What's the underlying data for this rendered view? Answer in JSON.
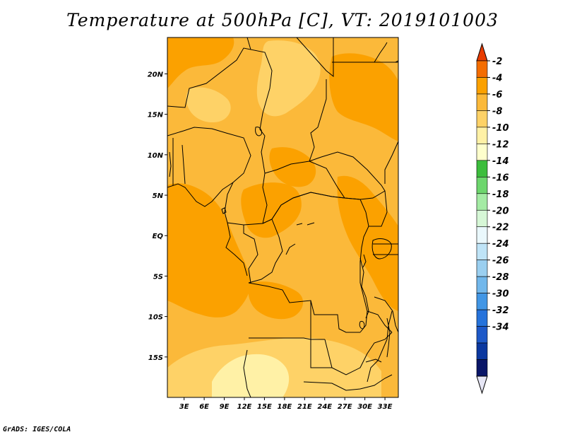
{
  "title": "Temperature at 500hPa [C], VT: 2019101003",
  "footer": "GrADS: IGES/COLA",
  "map": {
    "lat_labels": [
      {
        "lat": 20,
        "label": "20N"
      },
      {
        "lat": 15,
        "label": "15N"
      },
      {
        "lat": 10,
        "label": "10N"
      },
      {
        "lat": 5,
        "label": "5N"
      },
      {
        "lat": 0,
        "label": "EQ"
      },
      {
        "lat": -5,
        "label": "5S"
      },
      {
        "lat": -10,
        "label": "10S"
      },
      {
        "lat": -15,
        "label": "15S"
      }
    ],
    "lon_labels": [
      {
        "lon": 3,
        "label": "3E"
      },
      {
        "lon": 6,
        "label": "6E"
      },
      {
        "lon": 9,
        "label": "9E"
      },
      {
        "lon": 12,
        "label": "12E"
      },
      {
        "lon": 15,
        "label": "15E"
      },
      {
        "lon": 18,
        "label": "18E"
      },
      {
        "lon": 21,
        "label": "21E"
      },
      {
        "lon": 24,
        "label": "24E"
      },
      {
        "lon": 27,
        "label": "27E"
      },
      {
        "lon": 30,
        "label": "30E"
      },
      {
        "lon": 33,
        "label": "33E"
      }
    ],
    "lon_range": [
      0.5,
      35
    ],
    "lat_range": [
      -20,
      24.5
    ]
  },
  "colorbar": {
    "labels": [
      "-2",
      "-4",
      "-6",
      "-8",
      "-10",
      "-12",
      "-14",
      "-16",
      "-18",
      "-20",
      "-22",
      "-24",
      "-26",
      "-28",
      "-30",
      "-32",
      "-34"
    ],
    "colors": [
      "#e83c00",
      "#f46d00",
      "#fba100",
      "#fbb93a",
      "#fed267",
      "#fff1a6",
      "#feffcc",
      "#3cbd3c",
      "#6dd66d",
      "#a4eba4",
      "#d6f7d6",
      "#eaf8fc",
      "#bfe4f7",
      "#9acff0",
      "#71b7eb",
      "#4196e5",
      "#2673db",
      "#1e59c8",
      "#0b38a0",
      "#0a1668",
      "#e6e6f5"
    ]
  },
  "field_colors": {
    "-5": "#fba100",
    "-7": "#fbb93a",
    "-9": "#fed267",
    "-11": "#fff1a6"
  }
}
